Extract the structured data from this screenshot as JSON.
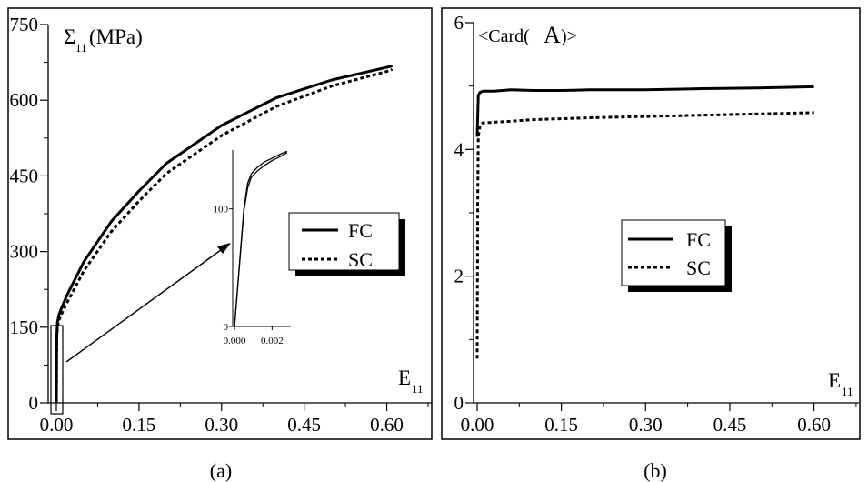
{
  "chart_data": [
    {
      "panel_label": "(a)",
      "type": "line",
      "ylabel_main": "Σ",
      "ylabel_sub": "11",
      "ylabel_unit": "(MPa)",
      "xlabel_main": "E",
      "xlabel_sub": "11",
      "xlim": [
        0,
        0.68
      ],
      "ylim": [
        0,
        750
      ],
      "xticks": [
        0,
        0.15,
        0.3,
        0.45,
        0.6
      ],
      "xtick_labels": [
        "0.00",
        "0.15",
        "0.30",
        "0.45",
        "0.60"
      ],
      "yticks": [
        0,
        150,
        300,
        450,
        600,
        750
      ],
      "ytick_labels": [
        "0",
        "150",
        "300",
        "450",
        "600",
        "750"
      ],
      "legend": {
        "placement": "center-right",
        "entries": [
          "FC",
          "SC"
        ]
      },
      "series": [
        {
          "name": "FC",
          "style": "solid",
          "x": [
            0.0,
            0.0007,
            0.002,
            0.005,
            0.01,
            0.02,
            0.05,
            0.1,
            0.15,
            0.2,
            0.3,
            0.4,
            0.5,
            0.6,
            0.61
          ],
          "y": [
            0,
            130,
            160,
            175,
            190,
            215,
            280,
            360,
            420,
            475,
            550,
            605,
            640,
            665,
            668
          ]
        },
        {
          "name": "SC",
          "style": "dotted",
          "x": [
            0.0,
            0.0007,
            0.002,
            0.005,
            0.01,
            0.02,
            0.05,
            0.1,
            0.15,
            0.2,
            0.3,
            0.4,
            0.5,
            0.6,
            0.61
          ],
          "y": [
            0,
            125,
            150,
            165,
            178,
            200,
            262,
            340,
            400,
            455,
            530,
            588,
            628,
            657,
            661
          ]
        }
      ],
      "inset": {
        "xlim": [
          0,
          0.003
        ],
        "ylim": [
          0,
          150
        ],
        "xticks": [
          0,
          0.002
        ],
        "xtick_labels": [
          "0.000",
          "0.002"
        ],
        "yticks": [
          0,
          100
        ],
        "ytick_labels": [
          "0",
          "100"
        ],
        "series": [
          {
            "name": "FC",
            "x": [
              0,
              0.0005,
              0.0007,
              0.0009,
              0.0012,
              0.0016,
              0.002,
              0.0025,
              0.0028
            ],
            "y": [
              0,
              100,
              122,
              130,
              135,
              140,
              143,
              147,
              149
            ]
          },
          {
            "name": "SC",
            "x": [
              0,
              0.0005,
              0.0007,
              0.0009,
              0.0012,
              0.0016,
              0.002,
              0.0025,
              0.0028
            ],
            "y": [
              0,
              98,
              118,
              127,
              132,
              137,
              141,
              145,
              148
            ]
          }
        ]
      }
    },
    {
      "panel_label": "(b)",
      "type": "line",
      "ylabel_main": "<Card(",
      "ylabel_big": "A",
      "ylabel_end": ")>",
      "xlabel_main": "E",
      "xlabel_sub": "11",
      "xlim": [
        0,
        0.68
      ],
      "ylim": [
        0,
        6
      ],
      "xticks": [
        0,
        0.15,
        0.3,
        0.45,
        0.6
      ],
      "xtick_labels": [
        "0.00",
        "0.15",
        "0.30",
        "0.45",
        "0.60"
      ],
      "yticks": [
        0,
        2,
        4,
        6
      ],
      "ytick_labels": [
        "0",
        "2",
        "4",
        "6"
      ],
      "legend": {
        "placement": "center",
        "entries": [
          "FC",
          "SC"
        ]
      },
      "series": [
        {
          "name": "FC",
          "style": "solid",
          "x": [
            0.0,
            0.002,
            0.005,
            0.01,
            0.03,
            0.06,
            0.1,
            0.15,
            0.2,
            0.3,
            0.4,
            0.5,
            0.6
          ],
          "y": [
            4.2,
            4.85,
            4.9,
            4.92,
            4.92,
            4.94,
            4.93,
            4.93,
            4.94,
            4.94,
            4.96,
            4.97,
            4.99
          ]
        },
        {
          "name": "SC",
          "style": "dotted",
          "x": [
            0.0,
            0.001,
            0.002,
            0.005,
            0.01,
            0.05,
            0.1,
            0.2,
            0.3,
            0.4,
            0.5,
            0.6
          ],
          "y": [
            0.7,
            3.2,
            4.2,
            4.38,
            4.42,
            4.44,
            4.47,
            4.5,
            4.52,
            4.54,
            4.56,
            4.58
          ]
        }
      ]
    }
  ]
}
